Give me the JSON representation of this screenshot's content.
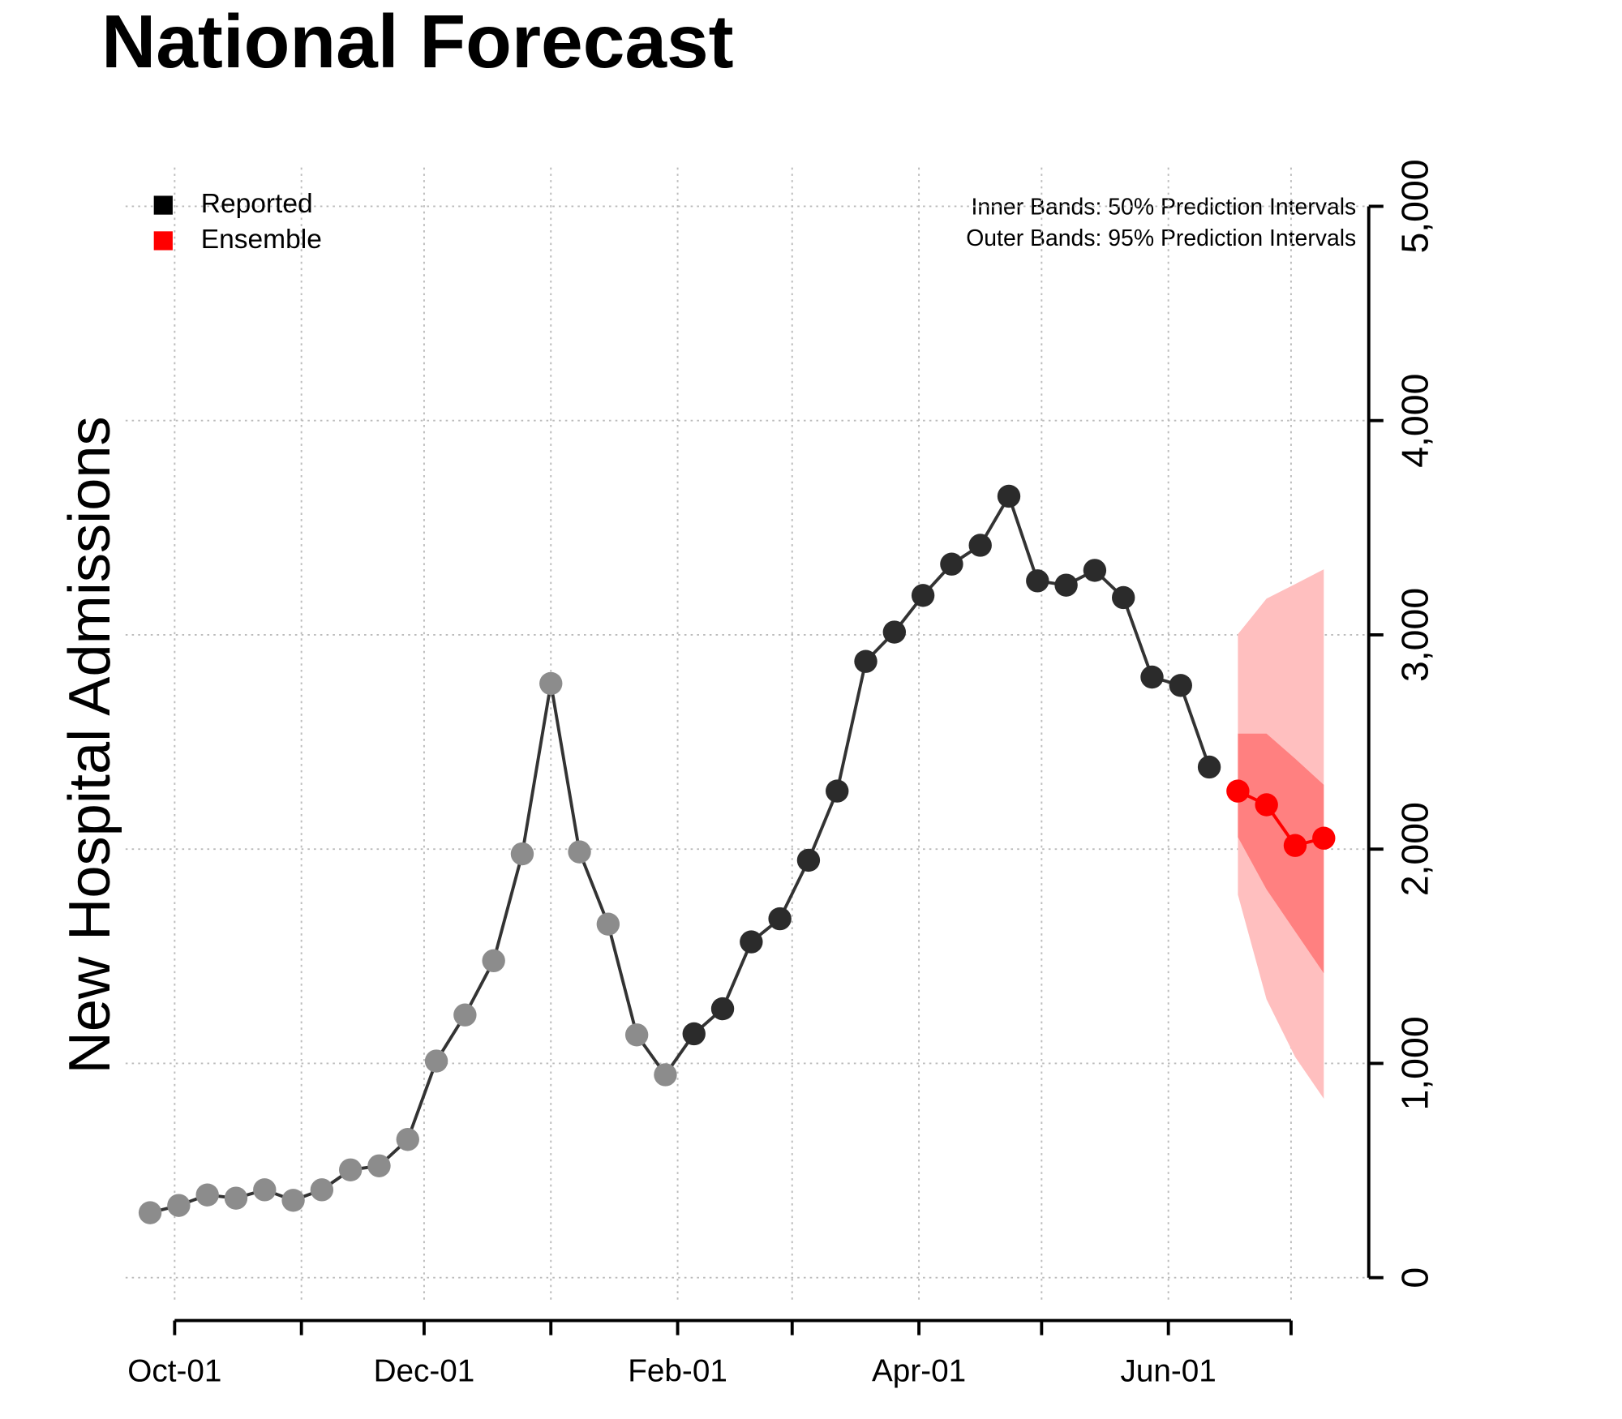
{
  "chart_data": {
    "type": "line",
    "title": "National Forecast",
    "y_label": "New Hospital Admissions",
    "annotations": [
      "Inner Bands: 50% Prediction Intervals",
      "Outer Bands: 95% Prediction Intervals"
    ],
    "legend": "top-left",
    "grid": true,
    "xlim": [
      -12,
      292
    ],
    "xticks": [
      {
        "value": 0,
        "label": "Oct-01"
      },
      {
        "value": 31,
        "label": null
      },
      {
        "value": 61,
        "label": "Dec-01"
      },
      {
        "value": 92,
        "label": null
      },
      {
        "value": 123,
        "label": "Feb-01"
      },
      {
        "value": 151,
        "label": null
      },
      {
        "value": 182,
        "label": "Apr-01"
      },
      {
        "value": 212,
        "label": null
      },
      {
        "value": 243,
        "label": "Jun-01"
      },
      {
        "value": 273,
        "label": null
      }
    ],
    "ylim": [
      -117,
      5181
    ],
    "yticks": [
      0,
      {
        "value": 1000,
        "label": "1,000"
      },
      {
        "value": 2000,
        "label": "2,000"
      },
      {
        "value": 3000,
        "label": "3,000"
      },
      {
        "value": 4000,
        "label": "4,000"
      },
      {
        "value": 5000,
        "label": "5,000"
      }
    ],
    "series": [
      {
        "name": "Reported",
        "color": "#000000",
        "line_color": "#333333",
        "x": [
          -6,
          1,
          8,
          15,
          22,
          29,
          36,
          43,
          50,
          57,
          64,
          71,
          78,
          85,
          92,
          99,
          106,
          113,
          120,
          127,
          134,
          141,
          148,
          155,
          162,
          169,
          176,
          183,
          190,
          197,
          204,
          211,
          218,
          225,
          232,
          239,
          246,
          253
        ],
        "values": [
          303,
          337,
          386,
          371,
          410,
          361,
          410,
          503,
          522,
          645,
          1011,
          1226,
          1479,
          1978,
          2773,
          1987,
          1650,
          1133,
          947,
          1138,
          1255,
          1567,
          1675,
          1948,
          2271,
          2876,
          3013,
          3184,
          3330,
          3418,
          3647,
          3252,
          3232,
          3301,
          3174,
          2803,
          2764,
          2383
        ],
        "point_colors": [
          "#8c8c8c",
          "#8c8c8c",
          "#8c8c8c",
          "#8c8c8c",
          "#8c8c8c",
          "#8c8c8c",
          "#8c8c8c",
          "#8c8c8c",
          "#8c8c8c",
          "#8c8c8c",
          "#8c8c8c",
          "#8c8c8c",
          "#8c8c8c",
          "#8c8c8c",
          "#8c8c8c",
          "#8c8c8c",
          "#8c8c8c",
          "#8c8c8c",
          "#8c8c8c",
          "#2b2b2b",
          "#2b2b2b",
          "#2b2b2b",
          "#2b2b2b",
          "#2b2b2b",
          "#2b2b2b",
          "#2b2b2b",
          "#2b2b2b",
          "#2b2b2b",
          "#2b2b2b",
          "#2b2b2b",
          "#2b2b2b",
          "#2b2b2b",
          "#2b2b2b",
          "#2b2b2b",
          "#2b2b2b",
          "#2b2b2b",
          "#2b2b2b",
          "#2b2b2b"
        ]
      },
      {
        "name": "Ensemble",
        "color": "#ff0000",
        "line_color": "#ff0000",
        "x": [
          260,
          267,
          274,
          281
        ],
        "values": [
          2271,
          2207,
          2017,
          2051
        ],
        "bands": [
          {
            "color": "#ffbfbf",
            "upper": [
              3003,
              3169,
              3237,
              3306
            ],
            "lower": [
              1787,
              1299,
              1030,
              835
            ]
          },
          {
            "color": "#ff8080",
            "upper": [
              2539,
              2539,
              2422,
              2300
            ],
            "lower": [
              2056,
              1812,
              1616,
              1421
            ]
          }
        ]
      }
    ]
  }
}
